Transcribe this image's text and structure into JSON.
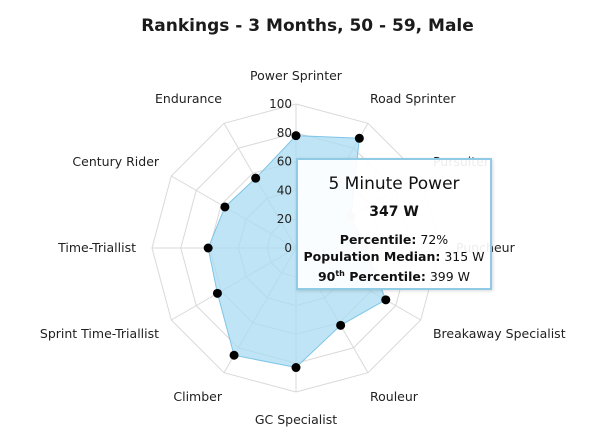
{
  "chart_data": {
    "type": "radar",
    "title": "Rankings - 3 Months, 50 - 59, Male",
    "categories": [
      "Power Sprinter",
      "Road Sprinter",
      "Pursuiter",
      "Puncheur",
      "Breakaway Specialist",
      "Rouleur",
      "GC Specialist",
      "Climber",
      "Sprint Time-Triallist",
      "Time-Triallist",
      "Century Rider",
      "Endurance"
    ],
    "values": [
      78,
      88,
      44,
      48,
      72,
      62,
      83,
      86,
      63,
      61,
      57,
      56
    ],
    "rlim": [
      0,
      100
    ],
    "ticks": [
      0,
      20,
      40,
      60,
      80,
      100
    ],
    "grid": true,
    "series_color": "#aadbf2",
    "series_stroke": "#7ec5e6",
    "point_color": "#000000",
    "hover_point_color": "#bdbdbd",
    "hover_indices": [
      2,
      3
    ]
  },
  "tooltip": {
    "title": "5 Minute Power",
    "value": "347 W",
    "percentile_label": "Percentile:",
    "percentile_value": "72%",
    "median_label": "Population Median:",
    "median_value": "315 W",
    "p90_label_pre": "90",
    "p90_label_sup": "th",
    "p90_label_post": " Percentile:",
    "p90_value": "399 W"
  }
}
